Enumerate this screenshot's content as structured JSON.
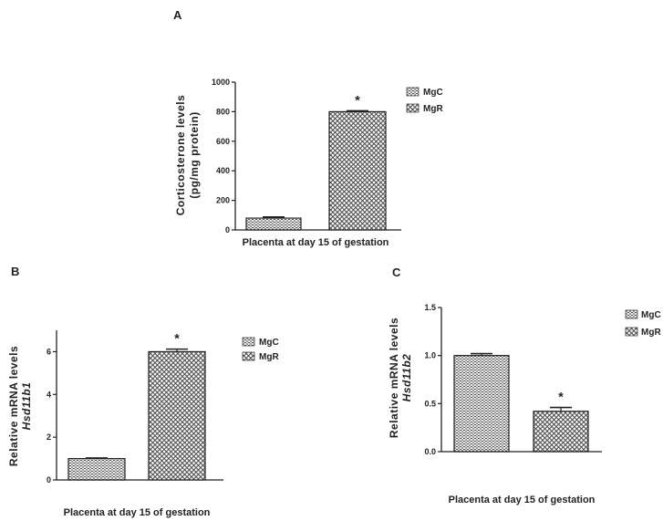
{
  "chart_data": [
    {
      "type": "bar",
      "panel_label": "A",
      "categories": [
        "MgC",
        "MgR"
      ],
      "values": [
        80,
        800
      ],
      "errors": [
        8,
        6
      ],
      "significance": [
        "",
        "*"
      ],
      "xlabel": "Placenta at day 15 of gestation",
      "ylabel_line1": "Corticosterone levels",
      "ylabel_line2": "(pg/mg protein)",
      "ylim": [
        0,
        1000
      ],
      "yticks": [
        "0",
        "200",
        "400",
        "600",
        "800",
        "1000"
      ],
      "legend": [
        "MgC",
        "MgR"
      ],
      "legend_position": "top-right"
    },
    {
      "type": "bar",
      "panel_label": "B",
      "categories": [
        "MgC",
        "MgR"
      ],
      "values": [
        1.0,
        6.0
      ],
      "errors": [
        0.03,
        0.12
      ],
      "significance": [
        "",
        "*"
      ],
      "xlabel": "Placenta at day 15 of gestation",
      "ylabel_line1": "Relative mRNA levels",
      "ylabel_line2": "Hsd11b1",
      "ylim": [
        0,
        7
      ],
      "yticks": [
        "0",
        "2",
        "4",
        "6"
      ],
      "legend": [
        "MgC",
        "MgR"
      ],
      "legend_position": "top-right"
    },
    {
      "type": "bar",
      "panel_label": "C",
      "categories": [
        "MgC",
        "MgR"
      ],
      "values": [
        1.0,
        0.42
      ],
      "errors": [
        0.02,
        0.04
      ],
      "significance": [
        "",
        "*"
      ],
      "xlabel": "Placenta at day 15 of gestation",
      "ylabel_line1": "Relative mRNA levels",
      "ylabel_line2": "Hsd11b2",
      "ylim": [
        0,
        1.5
      ],
      "yticks": [
        "0.0",
        "0.5",
        "1.0",
        "1.5"
      ],
      "legend": [
        "MgC",
        "MgR"
      ],
      "legend_position": "top-right"
    }
  ]
}
